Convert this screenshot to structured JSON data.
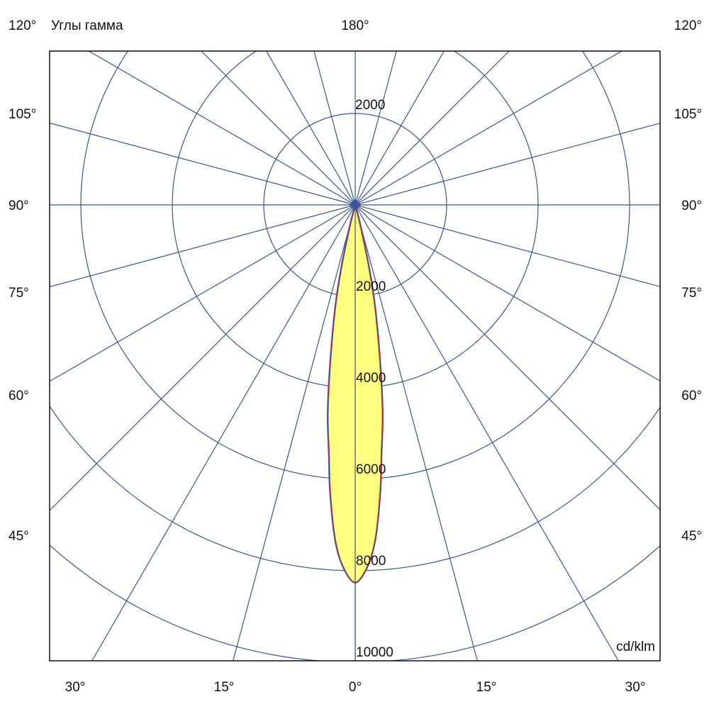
{
  "chart_data": {
    "type": "polar",
    "title": "",
    "angle_axis_label": "Углы гамма",
    "unit": "cd/klm",
    "radial_ticks": [
      2000,
      4000,
      6000,
      8000,
      10000
    ],
    "radial_tick_labels": [
      "2000",
      "4000",
      "6000",
      "8000",
      "10000"
    ],
    "top_ring_label": "2000",
    "angle_grid_step_deg": 15,
    "bottom_angle_labels": [
      "30°",
      "15°",
      "0°",
      "15°",
      "30°"
    ],
    "side_angle_labels": [
      "120°",
      "105°",
      "90°",
      "75°",
      "60°",
      "45°"
    ],
    "top_angle_label": "180°",
    "grid": true,
    "series": [
      {
        "gamma_deg": [
          0,
          2,
          3.5,
          5,
          6,
          7.5,
          9,
          11,
          12.5,
          14,
          16,
          20,
          90
        ],
        "intensity": [
          8260,
          7900,
          7300,
          6300,
          5500,
          4600,
          3500,
          2300,
          1400,
          550,
          100,
          0,
          0
        ]
      }
    ],
    "colors": {
      "grid": "#3a5590",
      "fill": "#ffff80",
      "curve_c0": "#e0413a",
      "curve_c90": "#3a5590"
    }
  }
}
